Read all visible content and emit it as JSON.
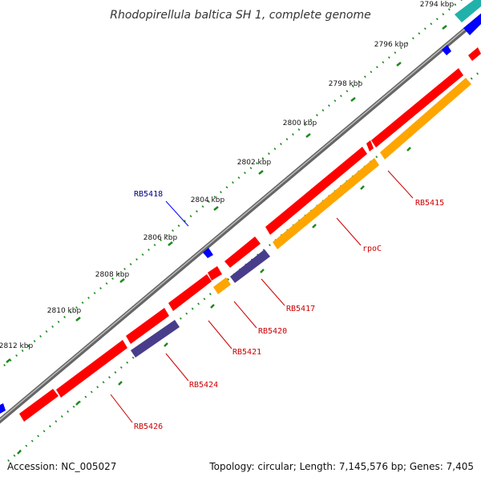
{
  "title": "Rhodopirellula baltica SH 1, complete genome",
  "footer": {
    "accession": "Accession: NC_005027",
    "summary": "Topology: circular; Length: 7,145,576 bp; Genes: 7,405"
  },
  "ticks": [
    "2794 kbp",
    "2796 kbp",
    "2798 kbp",
    "2800 kbp",
    "2802 kbp",
    "2804 kbp",
    "2806 kbp",
    "2808 kbp",
    "2810 kbp",
    "2812 kbp"
  ],
  "gene_labels": {
    "rb5418": "RB5418",
    "rb5415": "RB5415",
    "rpoc": "rpoC",
    "rb5417": "RB5417",
    "rb5420": "RB5420",
    "rb5421": "RB5421",
    "rb5424": "RB5424",
    "rb5426": "RB5426"
  },
  "colors": {
    "cds_forward": "#ff0000",
    "cds_reverse": "#ff0000",
    "rrna": "#ffa500",
    "other_gene": "#483d8b",
    "small_feature": "#0000ff",
    "teal_feature": "#20b2aa",
    "backbone": "#808080",
    "gc_dots": "#1a8a1a",
    "label_red": "#cc0000",
    "label_blue": "#000080"
  }
}
